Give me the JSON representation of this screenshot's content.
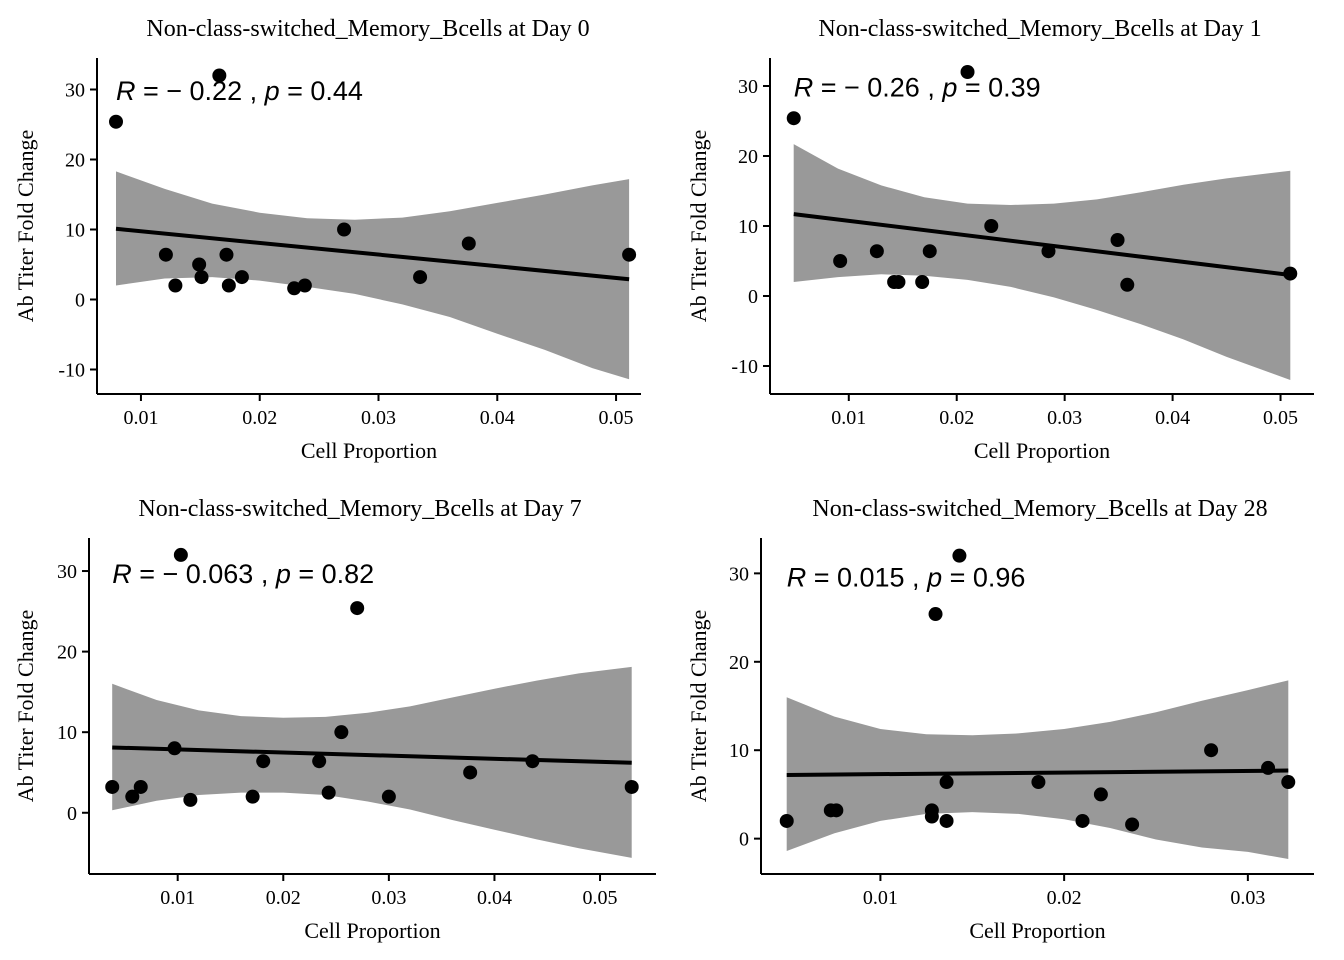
{
  "chart_data": [
    {
      "type": "scatter",
      "title": "Non-class-switched_Memory_Bcells at Day 0",
      "xlabel": "Cell Proportion",
      "ylabel": "Ab Titer Fold Change",
      "xlim": [
        0.0063,
        0.0521
      ],
      "ylim": [
        -13.5,
        34.5
      ],
      "x_ticks": [
        0.01,
        0.02,
        0.03,
        0.04,
        0.05
      ],
      "x_tick_labels": [
        "0.01",
        "0.02",
        "0.03",
        "0.04",
        "0.05"
      ],
      "y_ticks": [
        -10,
        0,
        10,
        20,
        30
      ],
      "y_tick_labels": [
        "-10",
        "0",
        "10",
        "20",
        "30"
      ],
      "points": [
        {
          "x": 0.0079,
          "y": 25.4
        },
        {
          "x": 0.0166,
          "y": 32.0
        },
        {
          "x": 0.0121,
          "y": 6.4
        },
        {
          "x": 0.0129,
          "y": 2.0
        },
        {
          "x": 0.0149,
          "y": 5.0
        },
        {
          "x": 0.0151,
          "y": 3.2
        },
        {
          "x": 0.0172,
          "y": 6.4
        },
        {
          "x": 0.0174,
          "y": 2.0
        },
        {
          "x": 0.0185,
          "y": 3.2
        },
        {
          "x": 0.0229,
          "y": 1.6
        },
        {
          "x": 0.0238,
          "y": 2.0
        },
        {
          "x": 0.0271,
          "y": 10.0
        },
        {
          "x": 0.0335,
          "y": 3.2
        },
        {
          "x": 0.0376,
          "y": 8.0
        },
        {
          "x": 0.0511,
          "y": 6.4
        }
      ],
      "fit": {
        "x0": 0.0079,
        "y0": 10.1,
        "x1": 0.0511,
        "y1": 2.9
      },
      "band": {
        "x": [
          0.0079,
          0.012,
          0.016,
          0.02,
          0.024,
          0.028,
          0.032,
          0.036,
          0.04,
          0.044,
          0.048,
          0.0511
        ],
        "upper": [
          18.3,
          15.8,
          13.7,
          12.4,
          11.6,
          11.4,
          11.7,
          12.6,
          13.8,
          15.0,
          16.3,
          17.2
        ],
        "lower": [
          2.0,
          3.0,
          3.2,
          2.7,
          1.8,
          0.8,
          -0.7,
          -2.5,
          -4.9,
          -7.2,
          -9.8,
          -11.4
        ]
      },
      "annotation": {
        "r_sym": "R",
        "r_val": " = − 0.22 , ",
        "p_sym": "p",
        "p_val": " = 0.44",
        "x": 0.0079,
        "y": 28.5
      }
    },
    {
      "type": "scatter",
      "title": "Non-class-switched_Memory_Bcells at Day 1",
      "xlabel": "Cell Proportion",
      "ylabel": "Ab Titer Fold Change",
      "xlim": [
        0.0027,
        0.0531
      ],
      "ylim": [
        -14.0,
        34.0
      ],
      "x_ticks": [
        0.01,
        0.02,
        0.03,
        0.04,
        0.05
      ],
      "x_tick_labels": [
        "0.01",
        "0.02",
        "0.03",
        "0.04",
        "0.05"
      ],
      "y_ticks": [
        -10,
        0,
        10,
        20,
        30
      ],
      "y_tick_labels": [
        "-10",
        "0",
        "10",
        "20",
        "30"
      ],
      "points": [
        {
          "x": 0.0049,
          "y": 25.4
        },
        {
          "x": 0.021,
          "y": 32.0
        },
        {
          "x": 0.0092,
          "y": 5.0
        },
        {
          "x": 0.0126,
          "y": 6.4
        },
        {
          "x": 0.0142,
          "y": 2.0
        },
        {
          "x": 0.0146,
          "y": 2.0
        },
        {
          "x": 0.0168,
          "y": 2.0
        },
        {
          "x": 0.0175,
          "y": 6.4
        },
        {
          "x": 0.0232,
          "y": 10.0
        },
        {
          "x": 0.0285,
          "y": 6.4
        },
        {
          "x": 0.0349,
          "y": 8.0
        },
        {
          "x": 0.0358,
          "y": 1.6
        },
        {
          "x": 0.0509,
          "y": 3.2
        }
      ],
      "fit": {
        "x0": 0.0049,
        "y0": 11.7,
        "x1": 0.0509,
        "y1": 3.0
      },
      "band": {
        "x": [
          0.0049,
          0.009,
          0.013,
          0.017,
          0.021,
          0.025,
          0.029,
          0.033,
          0.037,
          0.041,
          0.045,
          0.0509
        ],
        "upper": [
          21.7,
          18.2,
          15.8,
          14.1,
          13.2,
          13.0,
          13.2,
          13.8,
          14.8,
          15.9,
          16.8,
          17.9
        ],
        "lower": [
          2.0,
          2.7,
          3.1,
          2.9,
          2.3,
          1.3,
          -0.2,
          -2.0,
          -4.0,
          -6.2,
          -8.7,
          -12.0
        ]
      },
      "annotation": {
        "r_sym": "R",
        "r_val": " = − 0.26 , ",
        "p_sym": "p",
        "p_val": " = 0.39",
        "x": 0.0049,
        "y": 28.5
      }
    },
    {
      "type": "scatter",
      "title": "Non-class-switched_Memory_Bcells at Day 7",
      "xlabel": "Cell Proportion",
      "ylabel": "Ab Titer Fold Change",
      "xlim": [
        0.0016,
        0.0553
      ],
      "ylim": [
        -7.6,
        34.1
      ],
      "x_ticks": [
        0.01,
        0.02,
        0.03,
        0.04,
        0.05
      ],
      "x_tick_labels": [
        "0.01",
        "0.02",
        "0.03",
        "0.04",
        "0.05"
      ],
      "y_ticks": [
        0,
        10,
        20,
        30
      ],
      "y_tick_labels": [
        "0",
        "10",
        "20",
        "30"
      ],
      "points": [
        {
          "x": 0.0038,
          "y": 3.2
        },
        {
          "x": 0.0057,
          "y": 2.0
        },
        {
          "x": 0.0065,
          "y": 3.2
        },
        {
          "x": 0.0097,
          "y": 8.0
        },
        {
          "x": 0.0103,
          "y": 32.0
        },
        {
          "x": 0.0112,
          "y": 1.6
        },
        {
          "x": 0.0171,
          "y": 2.0
        },
        {
          "x": 0.0181,
          "y": 6.4
        },
        {
          "x": 0.0234,
          "y": 6.4
        },
        {
          "x": 0.0243,
          "y": 2.5
        },
        {
          "x": 0.0255,
          "y": 10.0
        },
        {
          "x": 0.027,
          "y": 25.4
        },
        {
          "x": 0.03,
          "y": 2.0
        },
        {
          "x": 0.0377,
          "y": 5.0
        },
        {
          "x": 0.0436,
          "y": 6.4
        },
        {
          "x": 0.053,
          "y": 3.2
        }
      ],
      "fit": {
        "x0": 0.0038,
        "y0": 8.1,
        "x1": 0.053,
        "y1": 6.2
      },
      "band": {
        "x": [
          0.0038,
          0.008,
          0.012,
          0.016,
          0.02,
          0.024,
          0.028,
          0.032,
          0.036,
          0.04,
          0.044,
          0.048,
          0.053
        ],
        "upper": [
          16.0,
          14.0,
          12.7,
          12.0,
          11.8,
          11.9,
          12.4,
          13.2,
          14.3,
          15.4,
          16.4,
          17.3,
          18.1
        ],
        "lower": [
          0.3,
          1.5,
          2.2,
          2.5,
          2.5,
          2.2,
          1.4,
          0.4,
          -0.9,
          -2.1,
          -3.3,
          -4.4,
          -5.6
        ]
      },
      "annotation": {
        "r_sym": "R",
        "r_val": " = − 0.063 , ",
        "p_sym": "p",
        "p_val": " = 0.82",
        "x": 0.0038,
        "y": 28.5
      }
    },
    {
      "type": "scatter",
      "title": "Non-class-switched_Memory_Bcells at Day 28",
      "xlabel": "Cell Proportion",
      "ylabel": "Ab Titer Fold Change",
      "xlim": [
        0.0035,
        0.0336
      ],
      "ylim": [
        -4.0,
        34.0
      ],
      "x_ticks": [
        0.01,
        0.02,
        0.03
      ],
      "x_tick_labels": [
        "0.01",
        "0.02",
        "0.03"
      ],
      "y_ticks": [
        0,
        10,
        20,
        30
      ],
      "y_tick_labels": [
        "0",
        "10",
        "20",
        "30"
      ],
      "points": [
        {
          "x": 0.0049,
          "y": 2.0
        },
        {
          "x": 0.0073,
          "y": 3.2
        },
        {
          "x": 0.0076,
          "y": 3.2
        },
        {
          "x": 0.0128,
          "y": 3.2
        },
        {
          "x": 0.0128,
          "y": 2.5
        },
        {
          "x": 0.013,
          "y": 25.4
        },
        {
          "x": 0.0136,
          "y": 6.4
        },
        {
          "x": 0.0136,
          "y": 2.0
        },
        {
          "x": 0.0143,
          "y": 32.0
        },
        {
          "x": 0.0186,
          "y": 6.4
        },
        {
          "x": 0.021,
          "y": 2.0
        },
        {
          "x": 0.022,
          "y": 5.0
        },
        {
          "x": 0.0237,
          "y": 1.6
        },
        {
          "x": 0.028,
          "y": 10.0
        },
        {
          "x": 0.0311,
          "y": 8.0
        },
        {
          "x": 0.0322,
          "y": 6.4
        }
      ],
      "fit": {
        "x0": 0.0049,
        "y0": 7.2,
        "x1": 0.0322,
        "y1": 7.7
      },
      "band": {
        "x": [
          0.0049,
          0.0075,
          0.01,
          0.0125,
          0.015,
          0.0175,
          0.02,
          0.0225,
          0.025,
          0.0275,
          0.03,
          0.0322
        ],
        "upper": [
          16.0,
          13.8,
          12.4,
          11.8,
          11.7,
          11.9,
          12.4,
          13.2,
          14.3,
          15.6,
          16.8,
          17.9
        ],
        "lower": [
          -1.4,
          0.6,
          2.0,
          2.8,
          3.0,
          2.8,
          2.2,
          1.2,
          -0.1,
          -1.0,
          -1.5,
          -2.3
        ]
      },
      "annotation": {
        "r_sym": "R",
        "r_val": " = 0.015 , ",
        "p_sym": "p",
        "p_val": " = 0.96",
        "x": 0.0049,
        "y": 28.5
      }
    }
  ]
}
